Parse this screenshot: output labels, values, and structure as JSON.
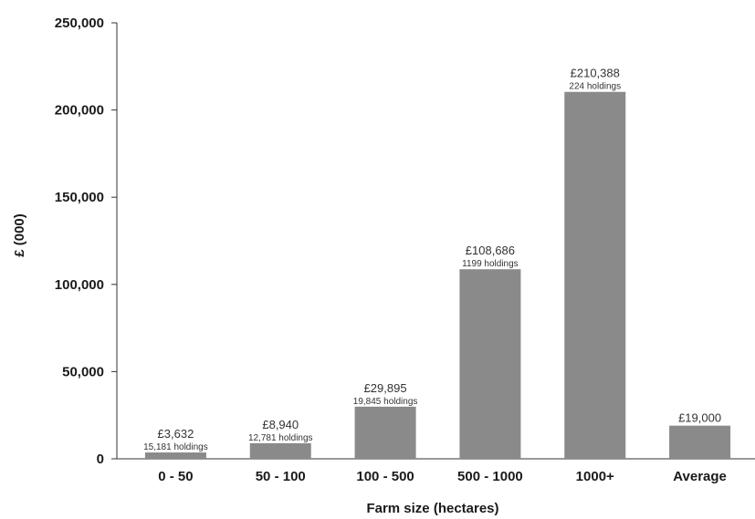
{
  "chart_data": {
    "type": "bar",
    "title": "",
    "xlabel": "Farm size (hectares)",
    "ylabel": "£ (000)",
    "ylim": [
      0,
      250000
    ],
    "yticks": [
      0,
      50000,
      100000,
      150000,
      200000,
      250000
    ],
    "ytick_labels": [
      "0",
      "50,000",
      "100,000",
      "150,000",
      "200,000",
      "250,000"
    ],
    "grid": false,
    "bar_color": "#8a8a8a",
    "categories": [
      "0 - 50",
      "50 - 100",
      "100 - 500",
      "500 - 1000",
      "1000+",
      "Average"
    ],
    "values": [
      3632,
      8940,
      29895,
      108686,
      210388,
      19000
    ],
    "value_labels": [
      "£3,632",
      "£8,940",
      "£29,895",
      "£108,686",
      "£210,388",
      "£19,000"
    ],
    "holdings_labels": [
      "15,181 holdings",
      "12,781 holdings",
      "19,845 holdings",
      "1199 holdings",
      "224 holdings",
      ""
    ]
  }
}
